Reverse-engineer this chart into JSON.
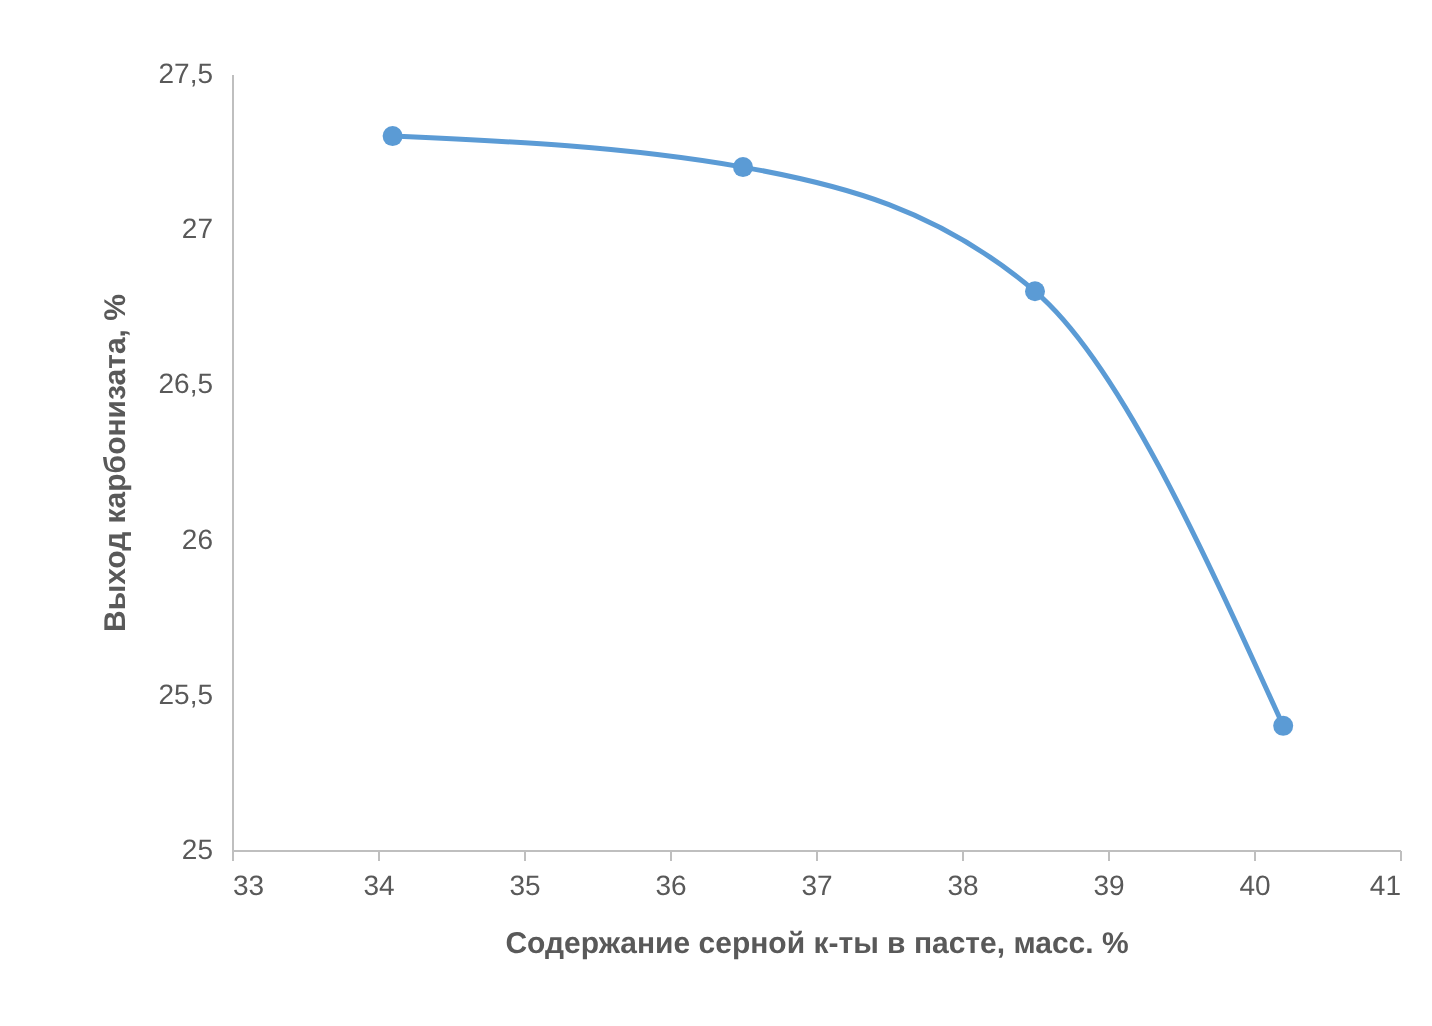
{
  "chart_data": {
    "type": "line",
    "xlabel": "Содержание серной к-ты в пасте,  масс. %",
    "ylabel": "Выход карбонизата, %",
    "x": [
      34.1,
      36.5,
      38.5,
      40.2
    ],
    "series": [
      {
        "color": "#5b9bd5",
        "values": [
          27.3,
          27.2,
          26.8,
          25.4
        ]
      }
    ],
    "xlim": [
      33,
      41
    ],
    "xticks": [
      33,
      34,
      35,
      36,
      37,
      38,
      39,
      40,
      41
    ],
    "ylim": [
      25,
      27.5
    ],
    "yticks": [
      25,
      {
        "value": 25.5,
        "label": "25,5"
      },
      26,
      {
        "value": 26.5,
        "label": "26,5"
      },
      27,
      {
        "value": 27.5,
        "label": "27,5"
      }
    ],
    "grid": false,
    "marker": "circle",
    "line_style": "solid"
  }
}
